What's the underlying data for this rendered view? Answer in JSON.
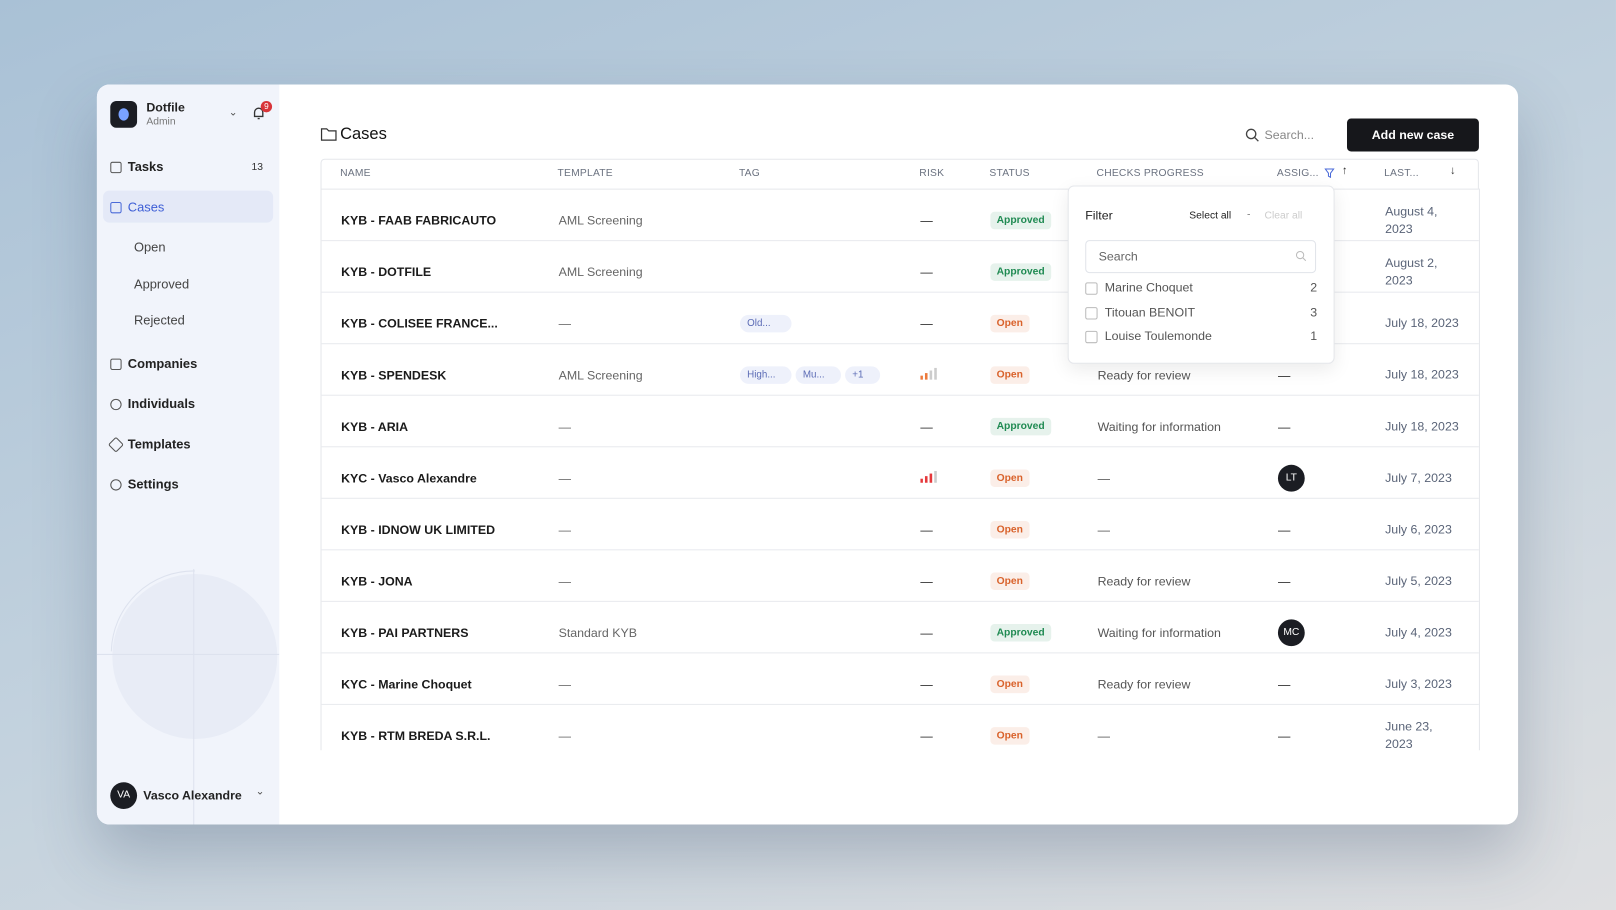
{
  "sidebar": {
    "org": "Dotfile",
    "role": "Admin",
    "badge": "9",
    "nav": [
      {
        "label": "Tasks",
        "count": "13"
      },
      {
        "label": "Cases"
      }
    ],
    "subnav": [
      "Open",
      "Approved",
      "Rejected"
    ],
    "nav2": [
      "Companies",
      "Individuals",
      "Templates",
      "Settings"
    ],
    "user": {
      "initials": "VA",
      "name": "Vasco Alexandre"
    }
  },
  "header": {
    "title": "Cases",
    "search": "Search...",
    "button": "Add new case"
  },
  "table": {
    "columns": [
      "NAME",
      "TEMPLATE",
      "TAG",
      "RISK",
      "STATUS",
      "CHECKS PROGRESS",
      "ASSIG...",
      "LAST..."
    ],
    "rows": [
      {
        "name": "KYB - FAAB FABRICAUTO",
        "template": "AML Screening",
        "tags": [],
        "risk": "—",
        "status": "Approved",
        "status_color": "#1f8a52",
        "last": "August 4, 2023"
      },
      {
        "name": "KYB - DOTFILE",
        "template": "AML Screening",
        "tags": [],
        "risk": "—",
        "status": "Approved",
        "status_color": "#1f8a52",
        "last": "August 2, 2023"
      },
      {
        "name": "KYB - COLISEE FRANCE...",
        "template": "—",
        "tags": [
          "Old..."
        ],
        "risk": "—",
        "status": "Open",
        "status_color": "#d9622b",
        "last": "July 18, 2023"
      },
      {
        "name": "KYB - SPENDESK",
        "template": "AML Screening",
        "tags": [
          "High...",
          "Mu...",
          "+1"
        ],
        "risk_color": "#ec7a3c",
        "risk_bars": 2,
        "status": "Open",
        "status_color": "#d9622b",
        "checks": "Ready for review",
        "assignee": "—",
        "last": "July 18, 2023"
      },
      {
        "name": "KYB - ARIA",
        "template": "—",
        "tags": [],
        "risk": "—",
        "status": "Approved",
        "status_color": "#1f8a52",
        "checks": "Waiting for information",
        "assignee": "—",
        "last": "July 18, 2023"
      },
      {
        "name": "KYC - Vasco Alexandre",
        "template": "—",
        "tags": [],
        "risk_color": "#e5383b",
        "risk_bars": 3,
        "status": "Open",
        "status_color": "#d9622b",
        "checks": "—",
        "assignee_avatar": "LT",
        "last": "July 7, 2023"
      },
      {
        "name": "KYB - IDNOW UK LIMITED",
        "template": "—",
        "tags": [],
        "risk": "—",
        "status": "Open",
        "status_color": "#d9622b",
        "checks": "—",
        "assignee": "—",
        "last": "July 6, 2023"
      },
      {
        "name": "KYB - JONA",
        "template": "—",
        "tags": [],
        "risk": "—",
        "status": "Open",
        "status_color": "#d9622b",
        "checks": "Ready for review",
        "assignee": "—",
        "last": "July 5, 2023"
      },
      {
        "name": "KYB - PAI PARTNERS",
        "template": "Standard KYB",
        "tags": [],
        "risk": "—",
        "status": "Approved",
        "status_color": "#1f8a52",
        "checks": "Waiting for information",
        "assignee_avatar": "MC",
        "last": "July 4, 2023"
      },
      {
        "name": "KYC - Marine Choquet",
        "template": "—",
        "tags": [],
        "risk": "—",
        "status": "Open",
        "status_color": "#d9622b",
        "checks": "Ready for review",
        "assignee": "—",
        "last": "July 3, 2023"
      },
      {
        "name": "KYB - RTM BREDA S.R.L.",
        "template": "—",
        "tags": [],
        "risk": "—",
        "status": "Open",
        "status_color": "#d9622b",
        "checks": "—",
        "assignee": "—",
        "last": "June 23, 2023"
      }
    ]
  },
  "filter": {
    "title": "Filter",
    "select_all": "Select all",
    "separator": "-",
    "clear_all": "Clear all",
    "search": "Search",
    "options": [
      {
        "label": "Marine Choquet",
        "count": "2"
      },
      {
        "label": "Titouan BENOIT",
        "count": "3"
      },
      {
        "label": "Louise Toulemonde",
        "count": "1"
      }
    ]
  }
}
